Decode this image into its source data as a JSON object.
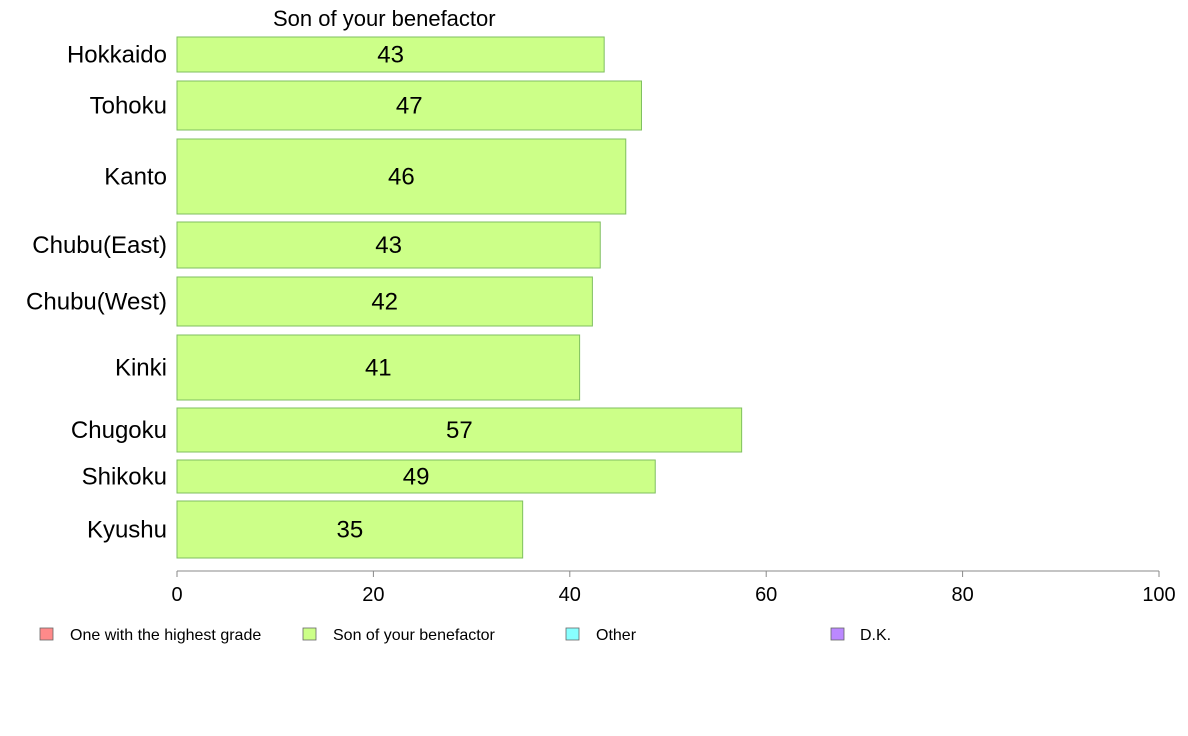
{
  "chart_data": {
    "type": "bar",
    "orientation": "horizontal",
    "title": "Son of your benefactor",
    "categories": [
      "Hokkaido",
      "Tohoku",
      "Kanto",
      "Chubu(East)",
      "Chubu(West)",
      "Kinki",
      "Chugoku",
      "Shikoku",
      "Kyushu"
    ],
    "values": [
      43.5,
      47.3,
      45.7,
      43.1,
      42.3,
      41.0,
      57.5,
      48.7,
      35.2
    ],
    "data_labels": [
      "43",
      "47",
      "46",
      "43",
      "42",
      "41",
      "57",
      "49",
      "35"
    ],
    "xlim": [
      0,
      100
    ],
    "x_ticks": [
      "0",
      "20",
      "40",
      "60",
      "80",
      "100"
    ],
    "grid": false,
    "legend_position": "bottom",
    "legend": [
      {
        "name": "One with the highest grade",
        "color": "#ff8a8a"
      },
      {
        "name": "Son of your benefactor",
        "color": "#ccff88"
      },
      {
        "name": "Other",
        "color": "#88ffff"
      },
      {
        "name": "D.K.",
        "color": "#bb88ff"
      }
    ],
    "bar_color": "#ccff88",
    "bar_stroke": "#7fbf5f"
  }
}
